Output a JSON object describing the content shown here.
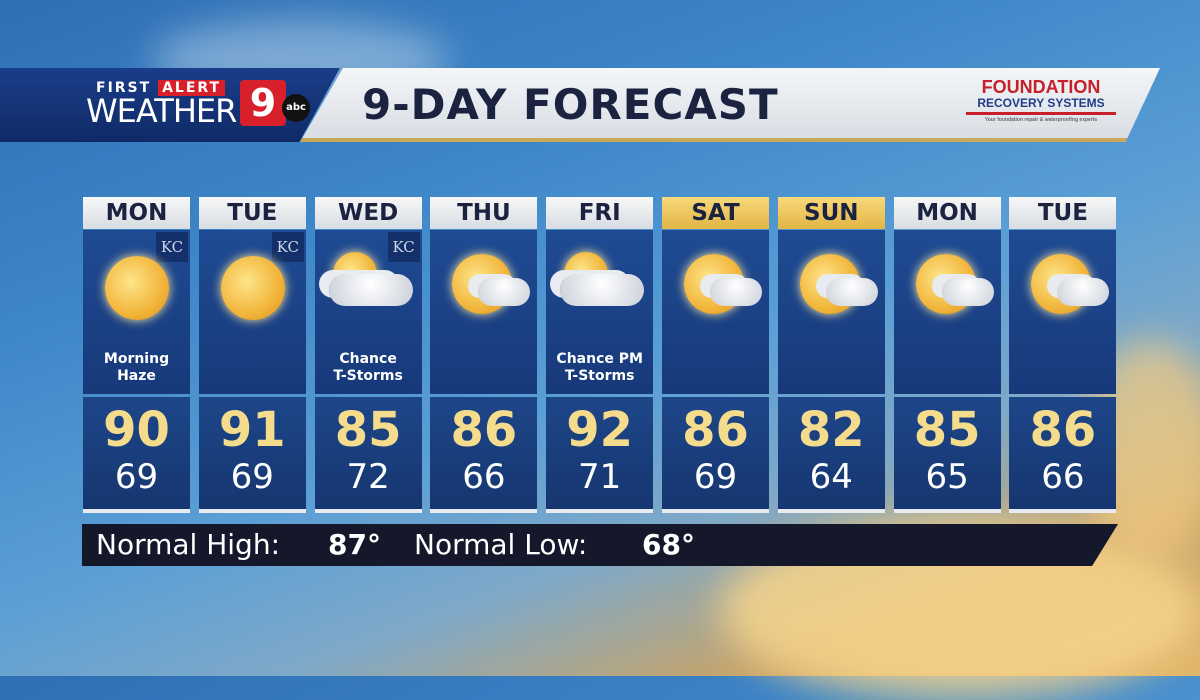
{
  "header": {
    "brand_top_1": "FIRST",
    "brand_top_2": "ALERT",
    "brand_main": "WEATHER",
    "channel": "9",
    "network": "abc",
    "title": "9-DAY FORECAST",
    "sponsor": {
      "line1": "FOUNDATION",
      "line2": "RECOVERY SYSTEMS",
      "tagline": "Your foundation repair & waterproofing experts"
    }
  },
  "days": [
    {
      "day": "MON",
      "icon": "hazy-sun-icon",
      "condition1": "Morning",
      "condition2": "Haze",
      "high": "90",
      "low": "69",
      "kc": "KC",
      "weekend": false
    },
    {
      "day": "TUE",
      "icon": "hazy-sun-icon",
      "condition1": "",
      "condition2": "",
      "high": "91",
      "low": "69",
      "kc": "KC",
      "weekend": false
    },
    {
      "day": "WED",
      "icon": "partly-cloudy-storm-icon",
      "condition1": "Chance",
      "condition2": "T-Storms",
      "high": "85",
      "low": "72",
      "kc": "KC",
      "weekend": false
    },
    {
      "day": "THU",
      "icon": "partly-cloudy-icon",
      "condition1": "",
      "condition2": "",
      "high": "86",
      "low": "66",
      "kc": "",
      "weekend": false
    },
    {
      "day": "FRI",
      "icon": "partly-cloudy-storm-icon",
      "condition1": "Chance PM",
      "condition2": "T-Storms",
      "high": "92",
      "low": "71",
      "kc": "",
      "weekend": false
    },
    {
      "day": "SAT",
      "icon": "partly-cloudy-icon",
      "condition1": "",
      "condition2": "",
      "high": "86",
      "low": "69",
      "kc": "",
      "weekend": true
    },
    {
      "day": "SUN",
      "icon": "partly-cloudy-icon",
      "condition1": "",
      "condition2": "",
      "high": "82",
      "low": "64",
      "kc": "",
      "weekend": true
    },
    {
      "day": "MON",
      "icon": "partly-cloudy-icon",
      "condition1": "",
      "condition2": "",
      "high": "85",
      "low": "65",
      "kc": "",
      "weekend": false
    },
    {
      "day": "TUE",
      "icon": "partly-cloudy-icon",
      "condition1": "",
      "condition2": "",
      "high": "86",
      "low": "66",
      "kc": "",
      "weekend": false
    }
  ],
  "normals": {
    "high_label": "Normal High:",
    "high_value": "87°",
    "low_label": "Normal Low:",
    "low_value": "68°"
  },
  "colors": {
    "high_temp": "#f4dc8c",
    "panel": "#1d4689",
    "weekend_header": "#f1c95a",
    "brand_red": "#d8202a"
  }
}
